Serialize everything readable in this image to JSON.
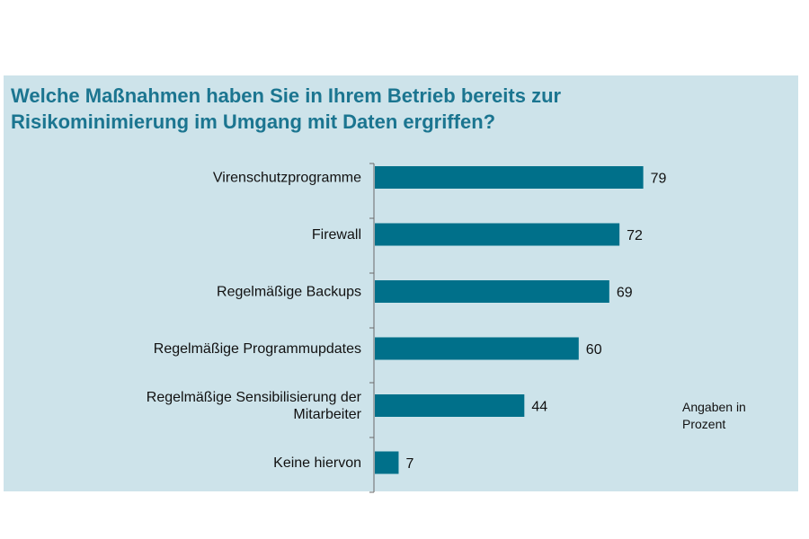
{
  "title_lines": [
    "Welche Maßnahmen haben Sie in Ihrem Betrieb bereits zur",
    "Risikominimierung im Umgang mit Daten ergriffen?"
  ],
  "note_lines": [
    "Angaben in",
    "Prozent"
  ],
  "colors": {
    "bar": "#00708a",
    "panel": "#cde3ea",
    "title": "#1b7590"
  },
  "chart_data": {
    "type": "bar",
    "orientation": "horizontal",
    "title": "Welche Maßnahmen haben Sie in Ihrem Betrieb bereits zur Risikominimierung im Umgang mit Daten ergriffen?",
    "categories": [
      [
        "Virenschutzprogramme"
      ],
      [
        "Firewall"
      ],
      [
        "Regelmäßige Backups"
      ],
      [
        "Regelmäßige Programmupdates"
      ],
      [
        "Regelmäßige Sensibilisierung der",
        "Mitarbeiter"
      ],
      [
        "Keine hiervon"
      ]
    ],
    "values": [
      79,
      72,
      69,
      60,
      44,
      7
    ],
    "xlim": [
      0,
      100
    ],
    "grid": false,
    "legend": "none",
    "annotation": "Angaben in Prozent"
  }
}
